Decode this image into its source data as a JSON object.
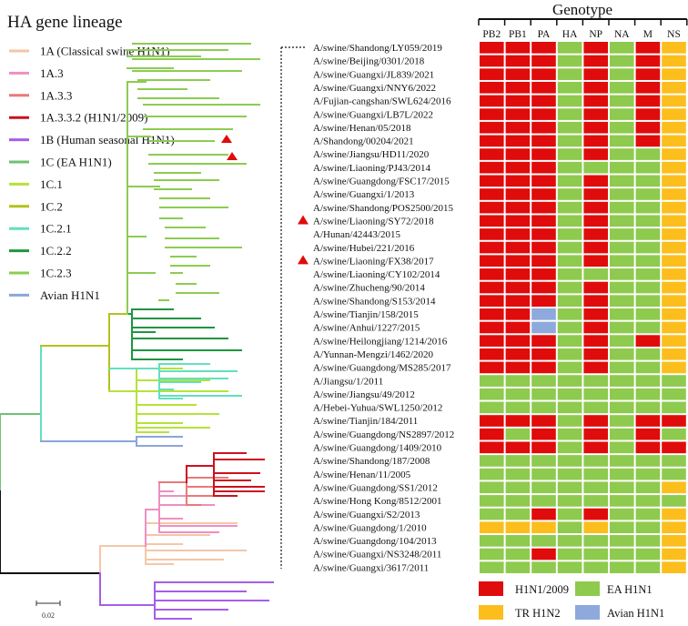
{
  "title": "HA gene lineage",
  "genotype_title": "Genotype",
  "scale_label": "0.02",
  "lineages": [
    {
      "label": "1A  (Classical swine H1N1)",
      "color": "#f4c6a8"
    },
    {
      "label": "1A.3",
      "color": "#ee8fc0"
    },
    {
      "label": "1A.3.3",
      "color": "#e87a78"
    },
    {
      "label": "1A.3.3.2 (H1N1/2009)",
      "color": "#cc1020"
    },
    {
      "label": "1B (Human seasonal H1N1)",
      "color": "#a65ee8"
    },
    {
      "label": "1C (EA H1N1)",
      "color": "#6fc173"
    },
    {
      "label": "1C.1",
      "color": "#b5e23a"
    },
    {
      "label": "1C.2",
      "color": "#b4c21c"
    },
    {
      "label": "1C.2.1",
      "color": "#62e0bf"
    },
    {
      "label": "1C.2.2",
      "color": "#1f9540"
    },
    {
      "label": "1C.2.3",
      "color": "#8ccc52"
    },
    {
      "label": "Avian H1N1",
      "color": "#8aa6d8"
    }
  ],
  "segments": [
    "PB2",
    "PB1",
    "PA",
    "HA",
    "NP",
    "NA",
    "M",
    "NS"
  ],
  "genotype_legend": [
    {
      "key": "R",
      "label": "H1N1/2009",
      "color": "#e00b0b"
    },
    {
      "key": "G",
      "label": "EA H1N1",
      "color": "#8dca4e"
    },
    {
      "key": "Y",
      "label": "TR H1N2",
      "color": "#fbbe1c"
    },
    {
      "key": "B",
      "label": "Avian H1N1",
      "color": "#8ea9dc"
    }
  ],
  "strains": [
    {
      "name": "A/swine/Shandong/LY059/2019",
      "marked": false,
      "genotype": "RRRGRGRY"
    },
    {
      "name": "A/swine/Beijing/0301/2018",
      "marked": false,
      "genotype": "RRRGRGRY"
    },
    {
      "name": "A/swine/Guangxi/JL839/2021",
      "marked": false,
      "genotype": "RRRGRGRY"
    },
    {
      "name": "A/swine/Guangxi/NNY6/2022",
      "marked": false,
      "genotype": "RRRGRGRY"
    },
    {
      "name": "A/Fujian-cangshan/SWL624/2016",
      "marked": false,
      "genotype": "RRRGRGRY"
    },
    {
      "name": "A/swine/Guangxi/LB7L/2022",
      "marked": false,
      "genotype": "RRRGRGRY"
    },
    {
      "name": "A/swine/Henan/05/2018",
      "marked": false,
      "genotype": "RRRGRGRY"
    },
    {
      "name": "A/Shandong/00204/2021",
      "marked": false,
      "genotype": "RRRGRGRY"
    },
    {
      "name": "A/swine/Jiangsu/HD11/2020",
      "marked": false,
      "genotype": "RRRGRGGY"
    },
    {
      "name": "A/swine/Liaoning/PJ43/2014",
      "marked": false,
      "genotype": "RRRGGGGY"
    },
    {
      "name": "A/swine/Guangdong/FSC17/2015",
      "marked": false,
      "genotype": "RRRGRGGY"
    },
    {
      "name": "A/swine/Guangxi/1/2013",
      "marked": false,
      "genotype": "RRRGRGGY"
    },
    {
      "name": "A/swine/Shandong/POS2500/2015",
      "marked": false,
      "genotype": "RRRGRGGY"
    },
    {
      "name": "A/swine/Liaoning/SY72/2018",
      "marked": true,
      "genotype": "RRRGRGGY"
    },
    {
      "name": "A/Hunan/42443/2015",
      "marked": false,
      "genotype": "RRRGRGGY"
    },
    {
      "name": "A/swine/Hubei/221/2016",
      "marked": false,
      "genotype": "RRRGRGGY"
    },
    {
      "name": "A/swine/Liaoning/FX38/2017",
      "marked": true,
      "genotype": "RRRGRGGY"
    },
    {
      "name": "A/swine/Liaoning/CY102/2014",
      "marked": false,
      "genotype": "RRRGGGGY"
    },
    {
      "name": "A/swine/Zhucheng/90/2014",
      "marked": false,
      "genotype": "RRRGRGGY"
    },
    {
      "name": "A/swine/Shandong/S153/2014",
      "marked": false,
      "genotype": "RRRGRGGY"
    },
    {
      "name": "A/swine/Tianjin/158/2015",
      "marked": false,
      "genotype": "RRBGRGGY"
    },
    {
      "name": "A/swine/Anhui/1227/2015",
      "marked": false,
      "genotype": "RRBGRGGY"
    },
    {
      "name": "A/swine/Heilongjiang/1214/2016",
      "marked": false,
      "genotype": "RRRGRGRY"
    },
    {
      "name": "A/Yunnan-Mengzi/1462/2020",
      "marked": false,
      "genotype": "RRRGRGGY"
    },
    {
      "name": "A/swine/Guangdong/MS285/2017",
      "marked": false,
      "genotype": "RRRGRGGY"
    },
    {
      "name": "A/Jiangsu/1/2011",
      "marked": false,
      "genotype": "GGGGGGGG"
    },
    {
      "name": "A/swine/Jiangsu/49/2012",
      "marked": false,
      "genotype": "GGGGGGGG"
    },
    {
      "name": "A/Hebei-Yuhua/SWL1250/2012",
      "marked": false,
      "genotype": "GGGGGGGG"
    },
    {
      "name": "A/swine/Tianjin/184/2011",
      "marked": false,
      "genotype": "RRRGRGRR"
    },
    {
      "name": "A/swine/Guangdong/NS2897/2012",
      "marked": false,
      "genotype": "RGRGRGRG"
    },
    {
      "name": "A/swine/Guangdong/1409/2010",
      "marked": false,
      "genotype": "RRRGRGRR"
    },
    {
      "name": "A/swine/Shandong/187/2008",
      "marked": false,
      "genotype": "GGGGGGGG"
    },
    {
      "name": "A/swine/Henan/11/2005",
      "marked": false,
      "genotype": "GGGGGGGG"
    },
    {
      "name": "A/swine/Guangdong/SS1/2012",
      "marked": false,
      "genotype": "GGGGGGGY"
    },
    {
      "name": "A/swine/Hong Kong/8512/2001",
      "marked": false,
      "genotype": "GGGGGGGG"
    },
    {
      "name": "A/swine/Guangxi/S2/2013",
      "marked": false,
      "genotype": "GGRGRGGY"
    },
    {
      "name": "A/swine/Guangdong/1/2010",
      "marked": false,
      "genotype": "YYYGYGGY"
    },
    {
      "name": "A/swine/Guangdong/104/2013",
      "marked": false,
      "genotype": "GGGGGGGY"
    },
    {
      "name": "A/swine/Guangxi/NS3248/2011",
      "marked": false,
      "genotype": "GGRGGGGY"
    },
    {
      "name": "A/swine/Guangxi/3617/2011",
      "marked": false,
      "genotype": "GGGGGGGY"
    }
  ]
}
